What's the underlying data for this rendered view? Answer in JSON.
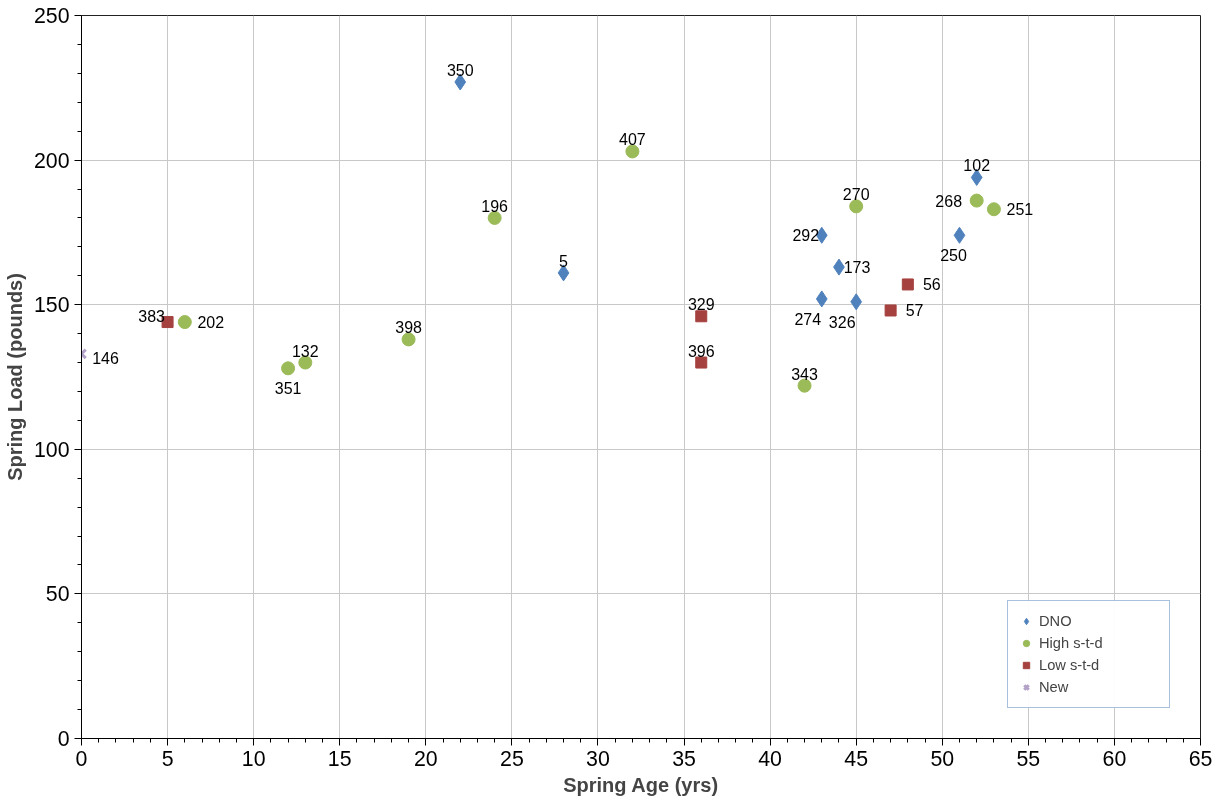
{
  "chart_data": {
    "type": "scatter",
    "xlabel": "Spring Age (yrs)",
    "ylabel": "Spring Load (pounds)",
    "xlim": [
      0,
      65
    ],
    "xticks": [
      0,
      5,
      10,
      15,
      20,
      25,
      30,
      35,
      40,
      45,
      50,
      55,
      60,
      65
    ],
    "ylim": [
      0,
      250
    ],
    "yticks": [
      0,
      50,
      100,
      150,
      200,
      250
    ],
    "grid": true,
    "legend": "bottom right",
    "series": [
      {
        "name": "DNO",
        "color": "#4f81bd",
        "marker": "diamond",
        "x": [
          22,
          28,
          43,
          44,
          43,
          45,
          51,
          52
        ],
        "values": [
          227,
          161,
          174,
          163,
          152,
          151,
          174,
          194
        ]
      },
      {
        "name": "High s-t-d",
        "color": "#9bbb59",
        "marker": "circle",
        "x": [
          6,
          12,
          13,
          19,
          24,
          32,
          42,
          45,
          52,
          53
        ],
        "values": [
          144,
          128,
          130,
          138,
          180,
          203,
          122,
          184,
          186,
          183
        ]
      },
      {
        "name": "Low s-t-d",
        "color": "#a5413f",
        "marker": "square",
        "x": [
          5,
          36,
          36,
          48,
          47
        ],
        "values": [
          144,
          146,
          130,
          157,
          148
        ]
      },
      {
        "name": "New",
        "color": "#b3a2c7",
        "marker": "x",
        "x": [
          0
        ],
        "values": [
          133
        ]
      }
    ],
    "annotations": [
      {
        "text": "350",
        "x": 22,
        "y": 227
      },
      {
        "text": "5",
        "x": 28,
        "y": 161
      },
      {
        "text": "292",
        "x": 43,
        "y": 174
      },
      {
        "text": "173",
        "x": 44,
        "y": 163
      },
      {
        "text": "274",
        "x": 43,
        "y": 152
      },
      {
        "text": "326",
        "x": 45,
        "y": 151
      },
      {
        "text": "250",
        "x": 51,
        "y": 174
      },
      {
        "text": "102",
        "x": 52,
        "y": 194
      },
      {
        "text": "202",
        "x": 6,
        "y": 144
      },
      {
        "text": "351",
        "x": 12,
        "y": 128
      },
      {
        "text": "132",
        "x": 13,
        "y": 130
      },
      {
        "text": "398",
        "x": 19,
        "y": 138
      },
      {
        "text": "196",
        "x": 24,
        "y": 180
      },
      {
        "text": "407",
        "x": 32,
        "y": 203
      },
      {
        "text": "343",
        "x": 42,
        "y": 122
      },
      {
        "text": "270",
        "x": 45,
        "y": 184
      },
      {
        "text": "268",
        "x": 52,
        "y": 186
      },
      {
        "text": "251",
        "x": 53,
        "y": 183
      },
      {
        "text": "383",
        "x": 5,
        "y": 144
      },
      {
        "text": "329",
        "x": 36,
        "y": 146
      },
      {
        "text": "396",
        "x": 36,
        "y": 130
      },
      {
        "text": "56",
        "x": 48,
        "y": 157
      },
      {
        "text": "57",
        "x": 47,
        "y": 148
      },
      {
        "text": "146",
        "x": 0,
        "y": 133
      }
    ]
  }
}
